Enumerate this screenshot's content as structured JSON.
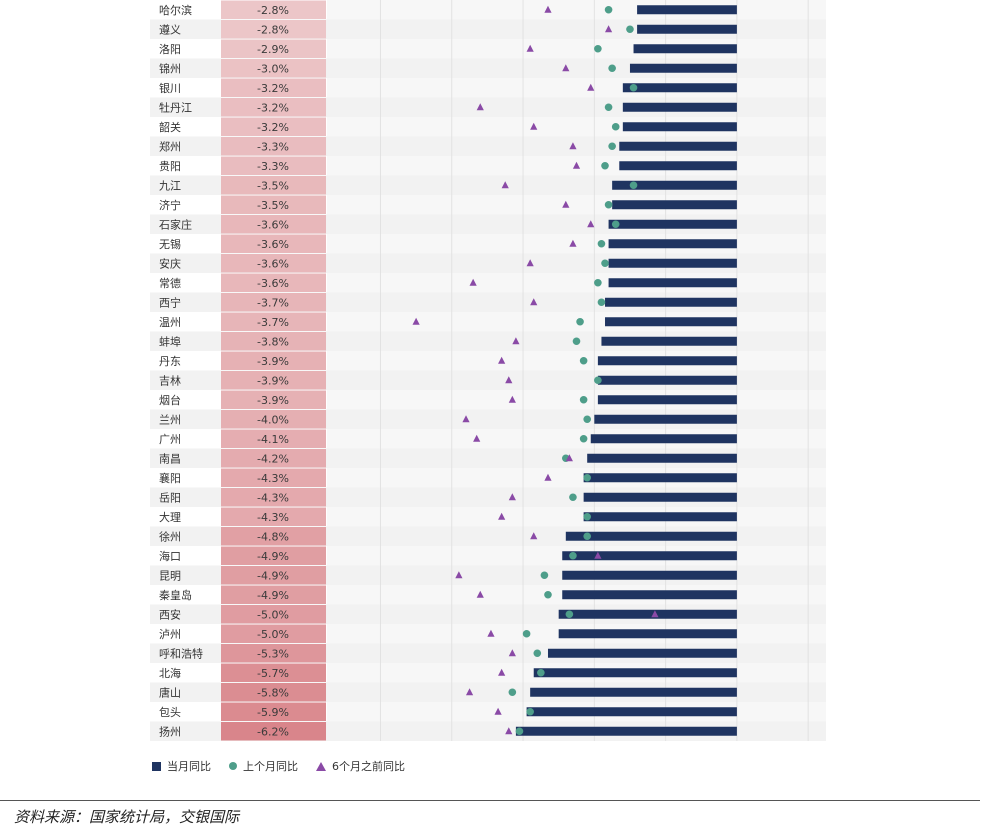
{
  "chart_data": {
    "type": "bar",
    "categories": [
      "哈尔滨",
      "遵义",
      "洛阳",
      "锦州",
      "银川",
      "牡丹江",
      "韶关",
      "郑州",
      "贵阳",
      "九江",
      "济宁",
      "石家庄",
      "无锡",
      "安庆",
      "常德",
      "西宁",
      "温州",
      "蚌埠",
      "丹东",
      "吉林",
      "烟台",
      "兰州",
      "广州",
      "南昌",
      "襄阳",
      "岳阳",
      "大理",
      "徐州",
      "海口",
      "昆明",
      "秦皇岛",
      "西安",
      "泸州",
      "呼和浩特",
      "北海",
      "唐山",
      "包头",
      "扬州"
    ],
    "value_labels": [
      "-2.8%",
      "-2.8%",
      "-2.9%",
      "-3.0%",
      "-3.2%",
      "-3.2%",
      "-3.2%",
      "-3.3%",
      "-3.3%",
      "-3.5%",
      "-3.5%",
      "-3.6%",
      "-3.6%",
      "-3.6%",
      "-3.6%",
      "-3.7%",
      "-3.7%",
      "-3.8%",
      "-3.9%",
      "-3.9%",
      "-3.9%",
      "-4.0%",
      "-4.1%",
      "-4.2%",
      "-4.3%",
      "-4.3%",
      "-4.3%",
      "-4.8%",
      "-4.9%",
      "-4.9%",
      "-4.9%",
      "-5.0%",
      "-5.0%",
      "-5.3%",
      "-5.7%",
      "-5.8%",
      "-5.9%",
      "-6.2%"
    ],
    "series": [
      {
        "name": "当月同比",
        "values": [
          -2.8,
          -2.8,
          -2.9,
          -3.0,
          -3.2,
          -3.2,
          -3.2,
          -3.3,
          -3.3,
          -3.5,
          -3.5,
          -3.6,
          -3.6,
          -3.6,
          -3.6,
          -3.7,
          -3.7,
          -3.8,
          -3.9,
          -3.9,
          -3.9,
          -4.0,
          -4.1,
          -4.2,
          -4.3,
          -4.3,
          -4.3,
          -4.8,
          -4.9,
          -4.9,
          -4.9,
          -5.0,
          -5.0,
          -5.3,
          -5.7,
          -5.8,
          -5.9,
          -6.2
        ]
      },
      {
        "name": "上个月同比",
        "values": [
          -3.6,
          -3.0,
          -3.9,
          -3.5,
          -2.9,
          -3.6,
          -3.4,
          -3.5,
          -3.7,
          -2.9,
          -3.6,
          -3.4,
          -3.8,
          -3.7,
          -3.9,
          -3.8,
          -4.4,
          -4.5,
          -4.3,
          -3.9,
          -4.3,
          -4.2,
          -4.3,
          -4.8,
          -4.2,
          -4.6,
          -4.2,
          -4.2,
          -4.6,
          -5.4,
          -5.3,
          -4.7,
          -5.9,
          -5.6,
          -5.5,
          -6.3,
          -5.8,
          -6.1
        ]
      },
      {
        "name": "6个月之前同比",
        "values": [
          -5.3,
          -3.6,
          -5.8,
          -4.8,
          -4.1,
          -7.2,
          -5.7,
          -4.6,
          -4.5,
          -6.5,
          -4.8,
          -4.1,
          -4.6,
          -5.8,
          -7.4,
          -5.7,
          -9.0,
          -6.2,
          -6.6,
          -6.4,
          -6.3,
          -7.6,
          -7.3,
          -4.7,
          -5.3,
          -6.3,
          -6.6,
          -5.7,
          -3.9,
          -7.8,
          -7.2,
          -2.3,
          -6.9,
          -6.3,
          -6.6,
          -7.5,
          -6.7,
          -6.4
        ]
      }
    ],
    "title": "",
    "xlabel": "",
    "ylabel": "",
    "xlim": [
      -11.5,
      2.5
    ],
    "grid": true,
    "legend_position": "bottom-left",
    "colors": {
      "bar": "#1f3461",
      "dot": "#4e9e8a",
      "triangle": "#8a4aa6",
      "label_column_light": "#ecc6c8",
      "label_column_dark": "#d9858b",
      "row_alt": "#f2f2f2"
    }
  },
  "legend": {
    "items": [
      "当月同比",
      "上个月同比",
      "6个月之前同比"
    ]
  },
  "source": "资料来源：国家统计局，交银国际"
}
